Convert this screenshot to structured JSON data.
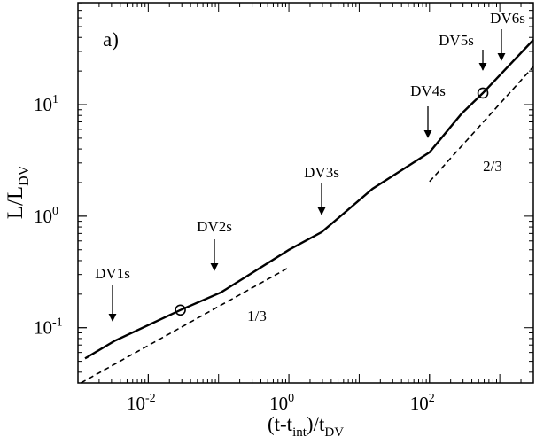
{
  "chart_data": {
    "type": "line",
    "label": "a)",
    "xlabel": [
      "(t-t",
      "int",
      ")/t",
      "DV"
    ],
    "ylabel": [
      "L/L",
      "DV"
    ],
    "xscale": "log",
    "yscale": "log",
    "xlim": [
      0.001,
      3000
    ],
    "ylim": [
      0.032,
      82
    ],
    "xticks": [
      {
        "value": 0.01,
        "label": "10",
        "sup": "-2"
      },
      {
        "value": 1,
        "label": "10",
        "sup": "0"
      },
      {
        "value": 100,
        "label": "10",
        "sup": "2"
      }
    ],
    "yticks": [
      {
        "value": 0.1,
        "label": "10",
        "sup": "-1"
      },
      {
        "value": 1,
        "label": "10",
        "sup": "0"
      },
      {
        "value": 10,
        "label": "10",
        "sup": "1"
      }
    ],
    "series": [
      {
        "color": "#000000",
        "style": "solid",
        "x": [
          0.00126,
          0.0033,
          0.0286,
          0.109,
          1,
          2.94,
          15.5,
          100,
          286,
          575,
          3000
        ],
        "values": [
          0.053,
          0.076,
          0.144,
          0.208,
          0.5,
          0.72,
          1.76,
          3.73,
          8.3,
          12.7,
          38
        ]
      },
      {
        "color": "#000000",
        "style": "dashed",
        "x": [
          0.0011,
          1
        ],
        "values": [
          0.032,
          0.347
        ]
      },
      {
        "color": "#000000",
        "style": "dashed",
        "x": [
          100,
          3000
        ],
        "values": [
          2.04,
          21.9
        ]
      }
    ],
    "markers": {
      "x": [
        0.0286,
        575
      ],
      "values": [
        0.144,
        12.7
      ]
    },
    "annotations": [
      "DV1s",
      "DV2s",
      "DV3s",
      "DV4s",
      "DV5s",
      "DV6s",
      "1/3",
      "2/3"
    ]
  }
}
